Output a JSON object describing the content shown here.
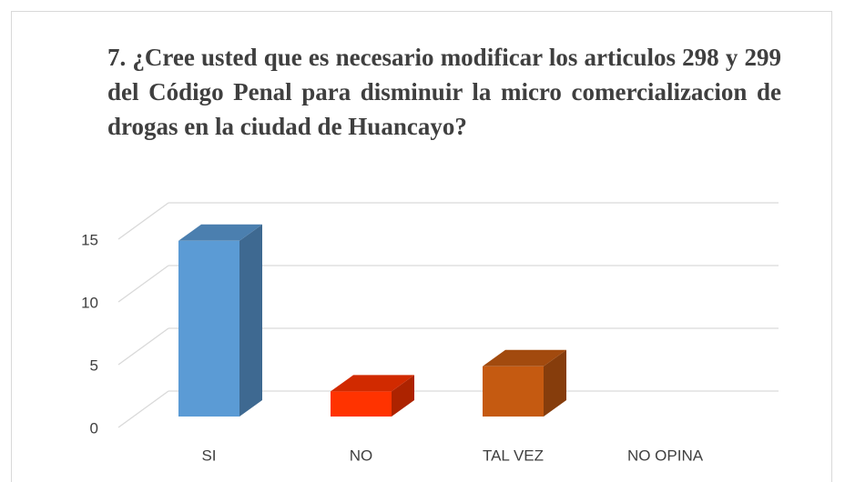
{
  "chart_data": {
    "type": "bar3d",
    "title": "7. ¿Cree usted que es necesario modificar los articulos 298 y 299 del Código Penal para disminuir la micro comercializacion de drogas en la ciudad de Huancayo?",
    "categories": [
      "SI",
      "NO",
      "TAL VEZ",
      "NO OPINA"
    ],
    "values": [
      14,
      2,
      4,
      0
    ],
    "colors": [
      "#5b9bd5",
      "#ff3300",
      "#c55a11",
      "#a5a5a5"
    ],
    "ylim": [
      0,
      15
    ],
    "yticks": [
      0,
      5,
      10,
      15
    ],
    "grid": true
  }
}
